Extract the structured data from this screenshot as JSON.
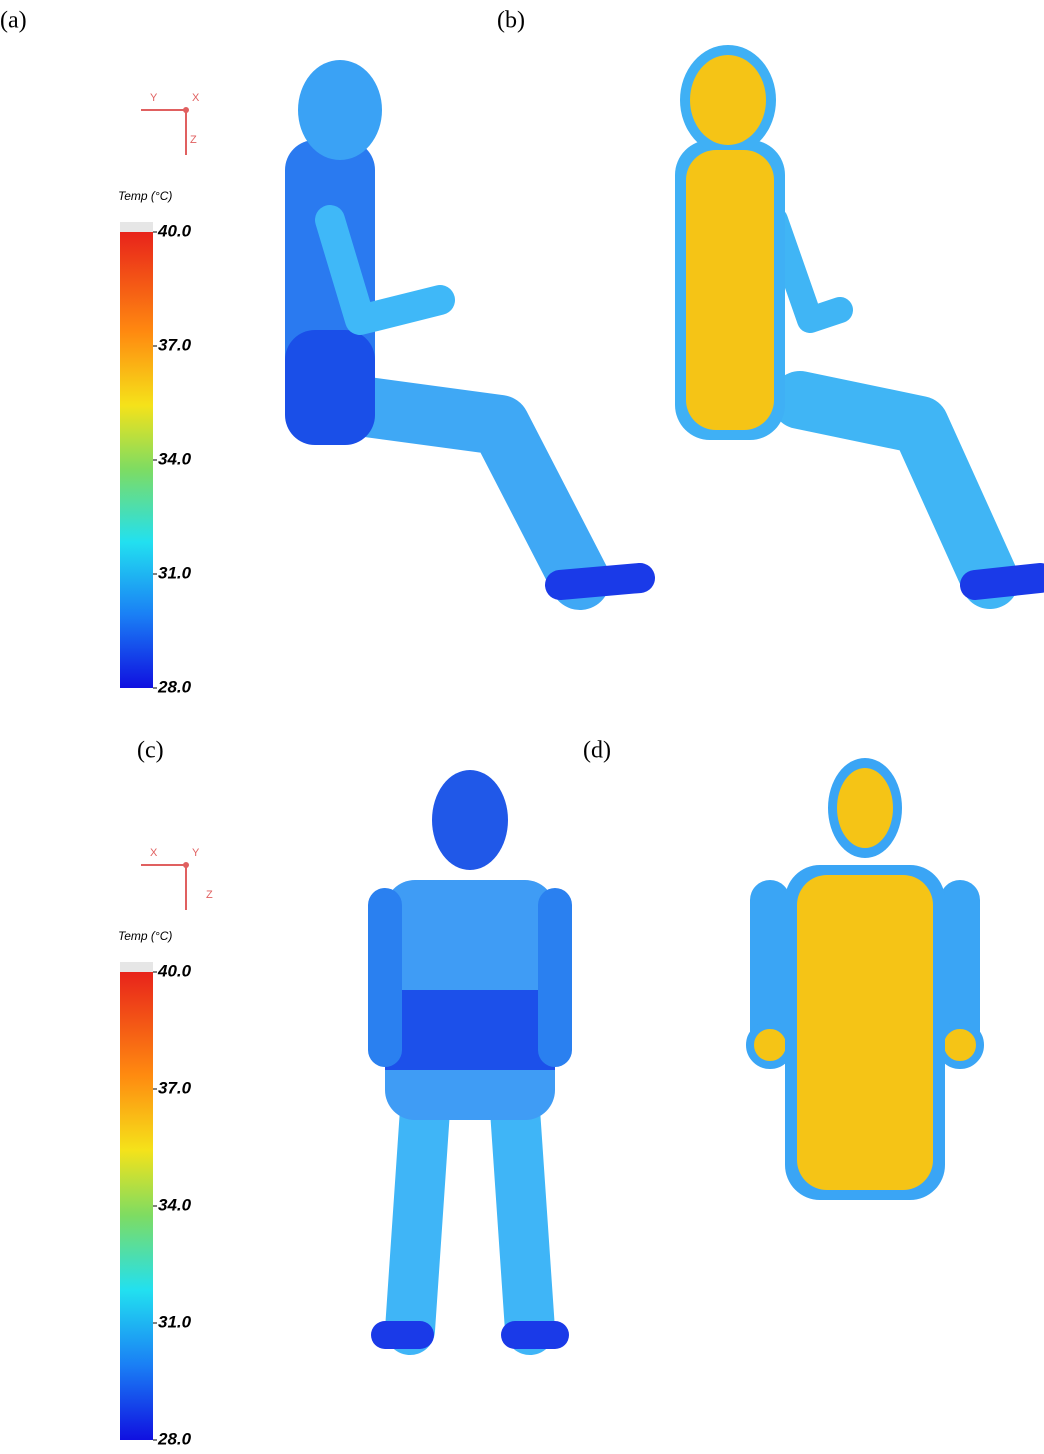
{
  "panels": [
    {
      "label": "(a)"
    },
    {
      "label": "(b)"
    },
    {
      "label": "(c)"
    },
    {
      "label": "(d)"
    }
  ],
  "colorbars": [
    {
      "title": "Temp (°C)",
      "axes": [
        "Y",
        "X",
        "Z"
      ],
      "ticks": [
        {
          "value": 40,
          "label": "40.0"
        },
        {
          "value": 37,
          "label": "37.0"
        },
        {
          "value": 34,
          "label": "34.0"
        },
        {
          "value": 31,
          "label": "31.0"
        },
        {
          "value": 28,
          "label": "28.0"
        }
      ]
    },
    {
      "title": "Temp (°C)",
      "axes": [
        "X",
        "Y",
        "Z"
      ],
      "ticks": [
        {
          "value": 40,
          "label": "40.0"
        },
        {
          "value": 37,
          "label": "37.0"
        },
        {
          "value": 34,
          "label": "34.0"
        },
        {
          "value": 31,
          "label": "31.0"
        },
        {
          "value": 28,
          "label": "28.0"
        }
      ]
    }
  ]
}
